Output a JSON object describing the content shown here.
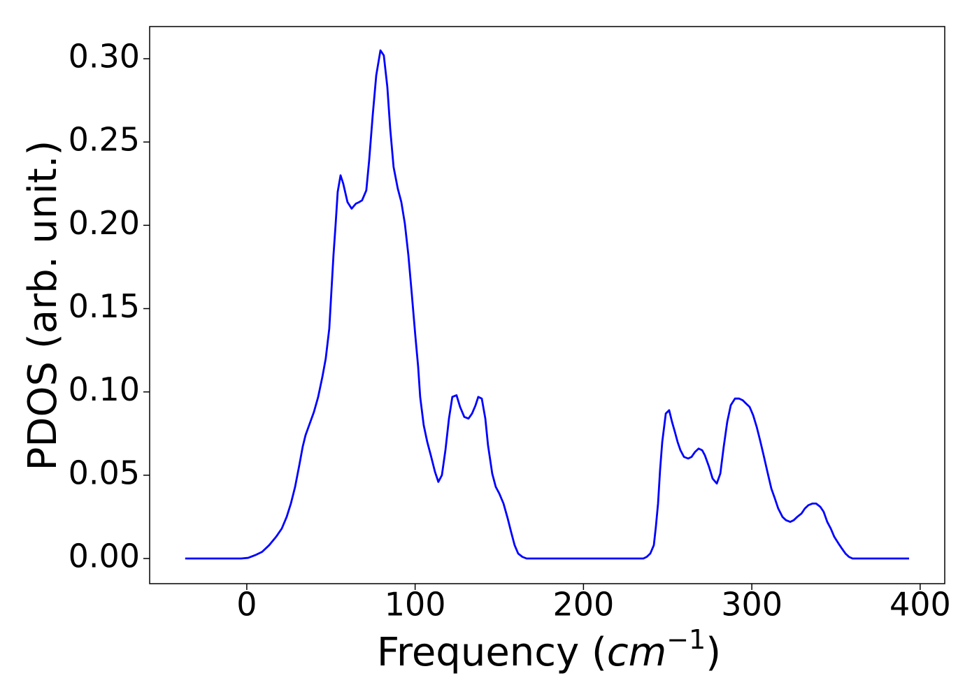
{
  "chart_data": {
    "type": "line",
    "xlabel_parts": [
      "Frequency (",
      "cm",
      "−1",
      ")"
    ],
    "ylabel": "PDOS (arb. unit.)",
    "xlim": [
      -57.7,
      414.6
    ],
    "ylim": [
      -0.0151,
      0.3193
    ],
    "xticks": [
      0,
      100,
      200,
      300,
      400
    ],
    "yticks": [
      {
        "value": 0,
        "label": "0.00"
      },
      {
        "value": 0.05,
        "label": "0.05"
      },
      {
        "value": 0.1,
        "label": "0.10"
      },
      {
        "value": 0.15,
        "label": "0.15"
      },
      {
        "value": 0.2,
        "label": "0.20"
      },
      {
        "value": 0.25,
        "label": "0.25"
      },
      {
        "value": 0.3,
        "label": "0.30"
      }
    ],
    "grid": false,
    "series": [
      {
        "color": "#0000ff",
        "x": [
          -36.6,
          -22.0,
          -9.6,
          -3.3,
          0.8,
          5.0,
          9.1,
          13.3,
          17.4,
          20.8,
          23.7,
          26.2,
          28.7,
          31.2,
          33.2,
          34.9,
          37.4,
          39.9,
          42.4,
          44.9,
          46.9,
          49.0,
          50.3,
          51.5,
          52.8,
          54.0,
          55.7,
          57.3,
          59.8,
          62.3,
          64.8,
          66.9,
          68.5,
          71.0,
          72.7,
          74.8,
          76.9,
          79.4,
          81.4,
          83.5,
          85.2,
          87.2,
          89.7,
          91.8,
          93.9,
          96.0,
          98.0,
          100.1,
          101.8,
          103.0,
          105.1,
          107.2,
          109.3,
          111.8,
          113.8,
          115.9,
          118.0,
          120.1,
          122.1,
          124.6,
          126.7,
          129.2,
          131.7,
          133.8,
          135.9,
          137.5,
          139.6,
          141.7,
          143.3,
          145.8,
          147.9,
          150.0,
          152.5,
          155.0,
          157.0,
          159.1,
          161.2,
          163.7,
          166.2,
          185.7,
          210.6,
          235.6,
          237.6,
          239.7,
          241.8,
          243.0,
          244.3,
          245.5,
          246.8,
          248.9,
          250.9,
          252.6,
          254.3,
          255.9,
          257.6,
          259.7,
          262.2,
          264.2,
          266.3,
          268.4,
          270.5,
          272.1,
          274.6,
          276.7,
          279.2,
          281.3,
          283.3,
          285.4,
          287.5,
          290.0,
          292.5,
          294.6,
          296.6,
          298.7,
          300.8,
          302.9,
          304.9,
          307.0,
          309.5,
          311.6,
          313.7,
          315.7,
          318.2,
          320.3,
          322.8,
          324.9,
          327.0,
          329.5,
          331.5,
          333.6,
          336.1,
          338.2,
          340.7,
          342.7,
          344.8,
          346.9,
          349.0,
          351.5,
          353.5,
          355.6,
          357.7,
          359.8,
          362.3,
          376.8,
          393.4
        ],
        "values": [
          0,
          0,
          0,
          0,
          0.0004,
          0.002,
          0.004,
          0.008,
          0.013,
          0.018,
          0.025,
          0.033,
          0.043,
          0.056,
          0.067,
          0.074,
          0.081,
          0.088,
          0.097,
          0.109,
          0.12,
          0.138,
          0.161,
          0.182,
          0.201,
          0.22,
          0.23,
          0.225,
          0.214,
          0.21,
          0.213,
          0.214,
          0.215,
          0.221,
          0.239,
          0.266,
          0.29,
          0.305,
          0.302,
          0.283,
          0.258,
          0.235,
          0.222,
          0.214,
          0.201,
          0.182,
          0.159,
          0.134,
          0.115,
          0.097,
          0.08,
          0.07,
          0.062,
          0.052,
          0.046,
          0.05,
          0.065,
          0.084,
          0.097,
          0.098,
          0.091,
          0.085,
          0.084,
          0.087,
          0.092,
          0.097,
          0.096,
          0.084,
          0.068,
          0.051,
          0.043,
          0.039,
          0.033,
          0.024,
          0.016,
          0.008,
          0.003,
          0.001,
          0,
          0,
          0,
          0,
          0.001,
          0.003,
          0.008,
          0.019,
          0.033,
          0.053,
          0.07,
          0.087,
          0.089,
          0.082,
          0.076,
          0.07,
          0.065,
          0.061,
          0.06,
          0.061,
          0.064,
          0.066,
          0.065,
          0.062,
          0.055,
          0.048,
          0.045,
          0.051,
          0.067,
          0.082,
          0.092,
          0.096,
          0.096,
          0.095,
          0.093,
          0.091,
          0.086,
          0.079,
          0.071,
          0.062,
          0.051,
          0.042,
          0.036,
          0.03,
          0.025,
          0.023,
          0.022,
          0.023,
          0.025,
          0.027,
          0.03,
          0.032,
          0.033,
          0.033,
          0.031,
          0.028,
          0.022,
          0.018,
          0.013,
          0.009,
          0.006,
          0.003,
          0.001,
          0,
          0,
          0,
          0
        ]
      }
    ]
  }
}
